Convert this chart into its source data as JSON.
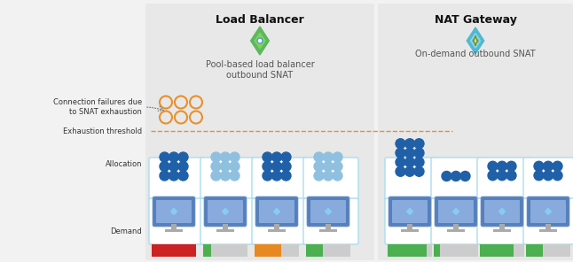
{
  "title_lb": "Load Balancer",
  "title_nat": "NAT Gateway",
  "subtitle_lb": "Pool-based load balancer\noutbound SNAT",
  "subtitle_nat": "On-demand outbound SNAT",
  "label_conn_fail": "Connection failures due\nto SNAT exhaustion",
  "label_exhaust": "Exhaustion threshold",
  "label_alloc": "Allocation",
  "label_demand": "Demand",
  "bg_color": "#f2f2f2",
  "panel_lb_color": "#e8e8e8",
  "panel_nat_color": "#e8e8e8",
  "dot_dark_blue": "#2060a8",
  "dot_light_blue": "#90c0e0",
  "dot_orange_empty": "#e8902a",
  "threshold_line_color": "#e8902a",
  "demand_colors_lb": [
    "#cc2222",
    "#4caf50",
    "#e88820",
    "#4caf50"
  ],
  "demand_fills_lb": [
    1.0,
    0.18,
    0.6,
    0.38
  ],
  "demand_colors_nat": [
    "#4caf50",
    "#4caf50",
    "#4caf50",
    "#4caf50"
  ],
  "demand_fills_nat": [
    0.88,
    0.14,
    0.75,
    0.38
  ],
  "cell_border_color": "#aaddee",
  "lb_icon_color_outer": "#5cb85c",
  "lb_icon_color_inner": "#80d060",
  "nat_icon_color_outer": "#50b8d0",
  "nat_icon_color_inner": "#80d8ee"
}
